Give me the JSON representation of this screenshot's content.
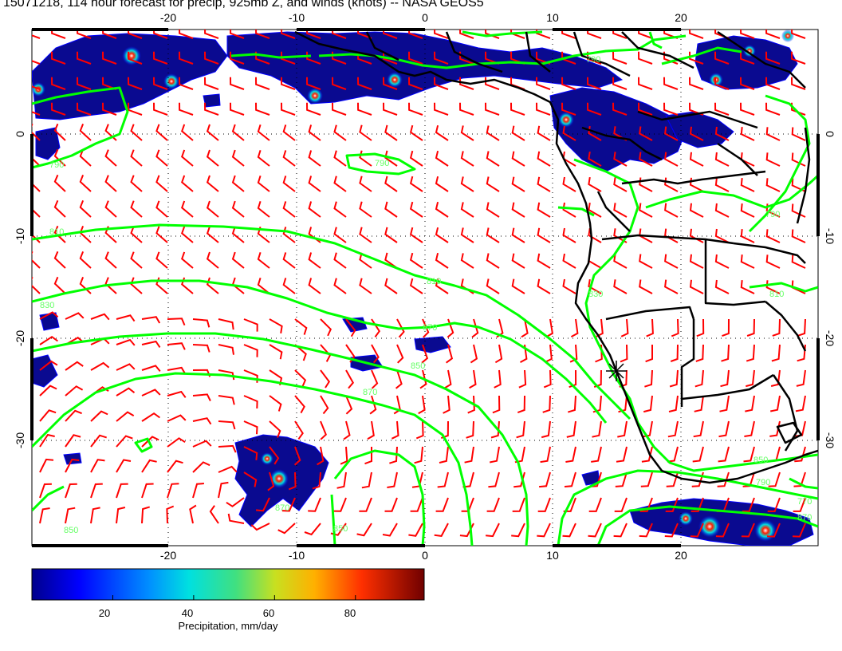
{
  "title": "15071218, 114 hour forecast for precip, 925mb Z, and winds (knots) -- NASA GEOS5",
  "map": {
    "lon_range": [
      -30,
      30
    ],
    "lat_range": [
      -40,
      10
    ],
    "lon_ticks": [
      "-20",
      "-10",
      "0",
      "10",
      "20"
    ],
    "lat_ticks": [
      "0",
      "-10",
      "-20",
      "-30"
    ],
    "grid": true,
    "marker": "asterisk",
    "colors": {
      "contour": "#00ff00",
      "barb": "#ff0000",
      "coast": "#000000",
      "precip_low": "#00008b"
    }
  },
  "contour_labels": [
    "790",
    "790",
    "790",
    "810",
    "810",
    "830",
    "850",
    "870",
    "870",
    "870",
    "830",
    "810",
    "770",
    "850",
    "850",
    "850",
    "870",
    "790",
    "790"
  ],
  "colorbar": {
    "label": "Precipitation, mm/day",
    "ticks": [
      "20",
      "40",
      "60",
      "80"
    ],
    "range": [
      0,
      97
    ],
    "tick_values": [
      20,
      40,
      60,
      80
    ]
  }
}
